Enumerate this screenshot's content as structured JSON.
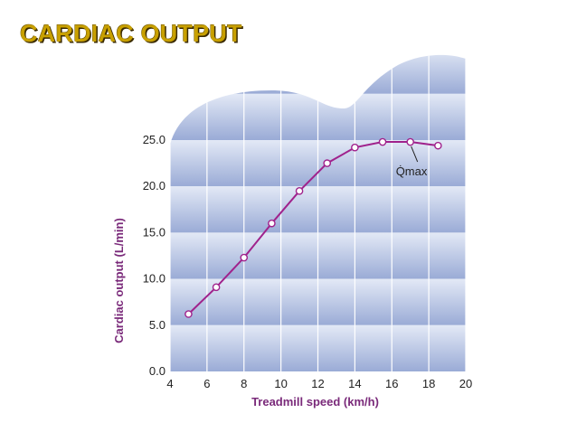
{
  "slide": {
    "title": "CARDIAC OUTPUT"
  },
  "colors": {
    "title": "#c8a000",
    "line": "#a0228c",
    "axis_label": "#7a2a7a",
    "band_dark": "#9aabd6",
    "band_light": "#e3e9f6",
    "grid": "#ffffff"
  },
  "chart_data": {
    "type": "line",
    "title": "",
    "xlabel": "Treadmill speed (km/h)",
    "ylabel": "Cardiac output (L/min)",
    "xlim": [
      4,
      20
    ],
    "ylim": [
      0,
      25
    ],
    "x_ticks": [
      "4",
      "6",
      "8",
      "10",
      "12",
      "14",
      "16",
      "18",
      "20"
    ],
    "y_ticks": [
      "0.0",
      "5.0",
      "10.0",
      "15.0",
      "20.0",
      "25.0"
    ],
    "grid": true,
    "legend": "none",
    "series": [
      {
        "x": [
          5,
          6.5,
          8,
          9.5,
          11,
          12.5,
          14,
          15.5,
          17,
          18.5
        ],
        "values": [
          6.2,
          9.1,
          12.3,
          16.0,
          19.5,
          22.5,
          24.2,
          24.8,
          24.8,
          24.4
        ]
      }
    ],
    "annotations": [
      {
        "text": "Q̇max",
        "x": 17,
        "y": 24.8
      }
    ]
  }
}
